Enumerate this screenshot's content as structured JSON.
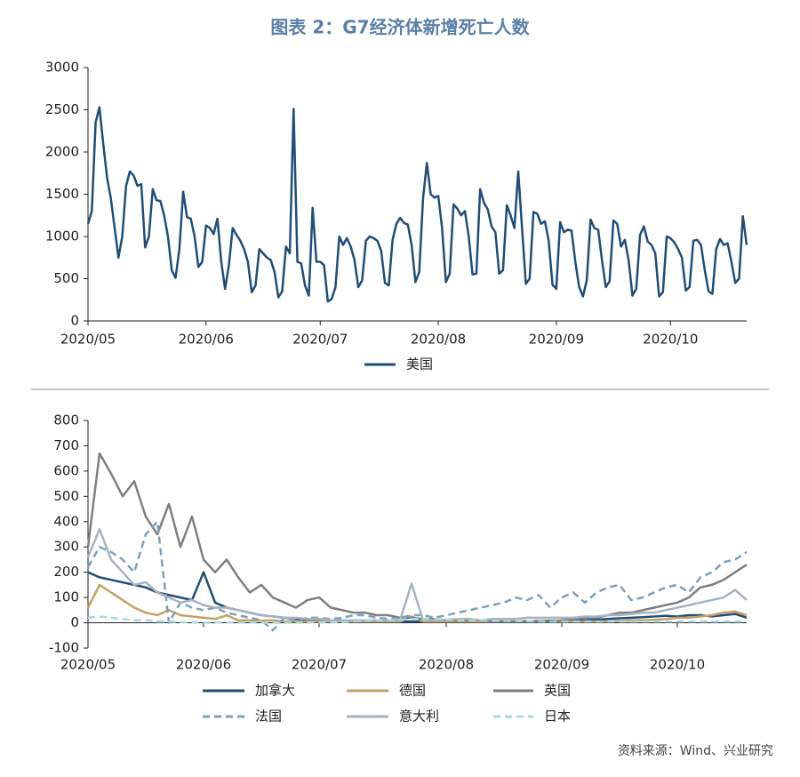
{
  "title": "图表 2：G7经济体新增死亡人数",
  "source": "资料来源：Wind、兴业研究",
  "chart_data": [
    {
      "type": "line",
      "categories": [
        "2020/05",
        null,
        null,
        null,
        null,
        null,
        null,
        null,
        null,
        null,
        null,
        null,
        null,
        null,
        null,
        null,
        null,
        null,
        null,
        null,
        null,
        null,
        null,
        null,
        null,
        null,
        null,
        null,
        null,
        null,
        null,
        "2020/06",
        null,
        null,
        null,
        null,
        null,
        null,
        null,
        null,
        null,
        null,
        null,
        null,
        null,
        null,
        null,
        null,
        null,
        null,
        null,
        null,
        null,
        null,
        null,
        null,
        null,
        null,
        null,
        null,
        null,
        "2020/07",
        null,
        null,
        null,
        null,
        null,
        null,
        null,
        null,
        null,
        null,
        null,
        null,
        null,
        null,
        null,
        null,
        null,
        null,
        null,
        null,
        null,
        null,
        null,
        null,
        null,
        null,
        null,
        null,
        null,
        null,
        "2020/08",
        null,
        null,
        null,
        null,
        null,
        null,
        null,
        null,
        null,
        null,
        null,
        null,
        null,
        null,
        null,
        null,
        null,
        null,
        null,
        null,
        null,
        null,
        null,
        null,
        null,
        null,
        null,
        null,
        null,
        null,
        "2020/09",
        null,
        null,
        null,
        null,
        null,
        null,
        null,
        null,
        null,
        null,
        null,
        null,
        null,
        null,
        null,
        null,
        null,
        null,
        null,
        null,
        null,
        null,
        null,
        null,
        null,
        null,
        null,
        null,
        null,
        "2020/10",
        null,
        null,
        null,
        null,
        null,
        null,
        null,
        null,
        null,
        null,
        null,
        null,
        null,
        null,
        null,
        null,
        null,
        null,
        null,
        null
      ],
      "series": [
        {
          "name": "美国",
          "color": "#1f4e79",
          "style": "solid",
          "values": [
            1150,
            1300,
            2350,
            2530,
            2100,
            1700,
            1450,
            1100,
            750,
            1000,
            1600,
            1770,
            1720,
            1600,
            1620,
            870,
            1000,
            1560,
            1430,
            1420,
            1250,
            1000,
            600,
            510,
            850,
            1530,
            1230,
            1210,
            1000,
            640,
            700,
            1130,
            1100,
            1030,
            1210,
            700,
            380,
            660,
            1100,
            1020,
            950,
            850,
            700,
            340,
            420,
            850,
            800,
            750,
            720,
            580,
            280,
            350,
            880,
            800,
            2510,
            700,
            680,
            420,
            300,
            1340,
            700,
            700,
            660,
            230,
            260,
            400,
            1000,
            900,
            980,
            880,
            720,
            400,
            480,
            950,
            1000,
            980,
            950,
            830,
            450,
            420,
            960,
            1150,
            1220,
            1160,
            1140,
            900,
            460,
            580,
            1450,
            1870,
            1500,
            1460,
            1480,
            1100,
            460,
            560,
            1380,
            1330,
            1250,
            1300,
            1000,
            550,
            560,
            1560,
            1400,
            1320,
            1120,
            1050,
            560,
            600,
            1370,
            1250,
            1100,
            1770,
            1100,
            440,
            500,
            1290,
            1270,
            1150,
            1180,
            950,
            430,
            380,
            1170,
            1050,
            1080,
            1070,
            700,
            400,
            290,
            480,
            1200,
            1100,
            1080,
            720,
            400,
            470,
            1190,
            1150,
            880,
            960,
            720,
            300,
            380,
            1020,
            1120,
            940,
            900,
            800,
            290,
            340,
            1000,
            980,
            930,
            850,
            750,
            360,
            400,
            950,
            960,
            900,
            600,
            350,
            320,
            850,
            970,
            900,
            920,
            700,
            450,
            500,
            1240,
            900
          ]
        }
      ],
      "ylim": [
        0,
        3000
      ],
      "yticks": [
        0,
        500,
        1000,
        1500,
        2000,
        2500,
        3000
      ]
    },
    {
      "type": "line",
      "categories": [
        "2020/05",
        null,
        null,
        null,
        null,
        null,
        null,
        null,
        null,
        null,
        "2020/06",
        null,
        null,
        null,
        null,
        null,
        null,
        null,
        null,
        null,
        "2020/07",
        null,
        null,
        null,
        null,
        null,
        null,
        null,
        null,
        null,
        null,
        "2020/08",
        null,
        null,
        null,
        null,
        null,
        null,
        null,
        null,
        null,
        "2020/09",
        null,
        null,
        null,
        null,
        null,
        null,
        null,
        null,
        null,
        "2020/10",
        null,
        null,
        null,
        null,
        null,
        null
      ],
      "series": [
        {
          "name": "加拿大",
          "color": "#1f4e79",
          "style": "solid",
          "values": [
            200,
            180,
            170,
            160,
            150,
            140,
            120,
            110,
            100,
            90,
            200,
            80,
            60,
            50,
            40,
            30,
            25,
            20,
            15,
            10,
            10,
            10,
            8,
            8,
            6,
            5,
            5,
            5,
            5,
            5,
            5,
            5,
            5,
            5,
            4,
            4,
            4,
            5,
            6,
            7,
            8,
            8,
            10,
            10,
            12,
            15,
            18,
            20,
            22,
            25,
            28,
            25,
            30,
            30,
            25,
            30,
            35,
            20
          ]
        },
        {
          "name": "德国",
          "color": "#c9a063",
          "style": "solid",
          "values": [
            60,
            150,
            120,
            90,
            60,
            40,
            30,
            50,
            30,
            25,
            20,
            15,
            30,
            10,
            10,
            8,
            10,
            5,
            5,
            5,
            5,
            5,
            5,
            5,
            5,
            5,
            5,
            5,
            25,
            5,
            5,
            5,
            5,
            5,
            5,
            5,
            5,
            5,
            5,
            5,
            5,
            5,
            5,
            5,
            5,
            5,
            8,
            10,
            10,
            12,
            15,
            20,
            20,
            25,
            30,
            40,
            45,
            30
          ]
        },
        {
          "name": "英国",
          "color": "#7f7f7f",
          "style": "solid",
          "values": [
            300,
            670,
            590,
            500,
            560,
            420,
            350,
            470,
            300,
            420,
            250,
            200,
            250,
            180,
            120,
            150,
            100,
            80,
            60,
            90,
            100,
            60,
            50,
            40,
            40,
            30,
            30,
            20,
            20,
            15,
            15,
            10,
            10,
            10,
            10,
            5,
            5,
            5,
            5,
            5,
            5,
            10,
            15,
            20,
            20,
            30,
            40,
            40,
            50,
            60,
            70,
            80,
            100,
            140,
            150,
            170,
            200,
            230
          ]
        },
        {
          "name": "法国",
          "color": "#7f9fbf",
          "style": "dashed",
          "values": [
            220,
            300,
            280,
            250,
            200,
            350,
            400,
            0,
            80,
            60,
            50,
            60,
            40,
            30,
            20,
            10,
            -30,
            20,
            10,
            20,
            20,
            15,
            20,
            30,
            30,
            20,
            15,
            20,
            30,
            30,
            20,
            30,
            40,
            50,
            60,
            70,
            80,
            100,
            90,
            110,
            60,
            100,
            120,
            80,
            120,
            140,
            150,
            90,
            100,
            120,
            140,
            150,
            120,
            180,
            200,
            240,
            250,
            280
          ]
        },
        {
          "name": "意大利",
          "color": "#a6b4bf",
          "style": "solid",
          "values": [
            260,
            370,
            250,
            200,
            150,
            160,
            120,
            100,
            80,
            90,
            70,
            60,
            60,
            50,
            40,
            30,
            25,
            20,
            20,
            15,
            15,
            10,
            10,
            10,
            10,
            10,
            8,
            10,
            155,
            10,
            10,
            12,
            15,
            15,
            10,
            15,
            15,
            15,
            20,
            20,
            20,
            20,
            20,
            25,
            25,
            30,
            30,
            35,
            40,
            40,
            50,
            60,
            70,
            80,
            90,
            100,
            130,
            90
          ]
        },
        {
          "name": "日本",
          "color": "#a8d8e0",
          "style": "dashed",
          "values": [
            20,
            25,
            20,
            15,
            10,
            10,
            5,
            5,
            3,
            2,
            1,
            1,
            1,
            1,
            1,
            1,
            0,
            0,
            1,
            1,
            1,
            2,
            3,
            5,
            8,
            10,
            10,
            12,
            15,
            15,
            15,
            12,
            10,
            10,
            10,
            8,
            8,
            7,
            6,
            6,
            5,
            5,
            5,
            5,
            5,
            5,
            5,
            5,
            5,
            5,
            5,
            5,
            5,
            5,
            5,
            5,
            5,
            5
          ]
        }
      ],
      "ylim": [
        -100,
        800
      ],
      "yticks": [
        -100,
        0,
        100,
        200,
        300,
        400,
        500,
        600,
        700,
        800
      ]
    }
  ]
}
